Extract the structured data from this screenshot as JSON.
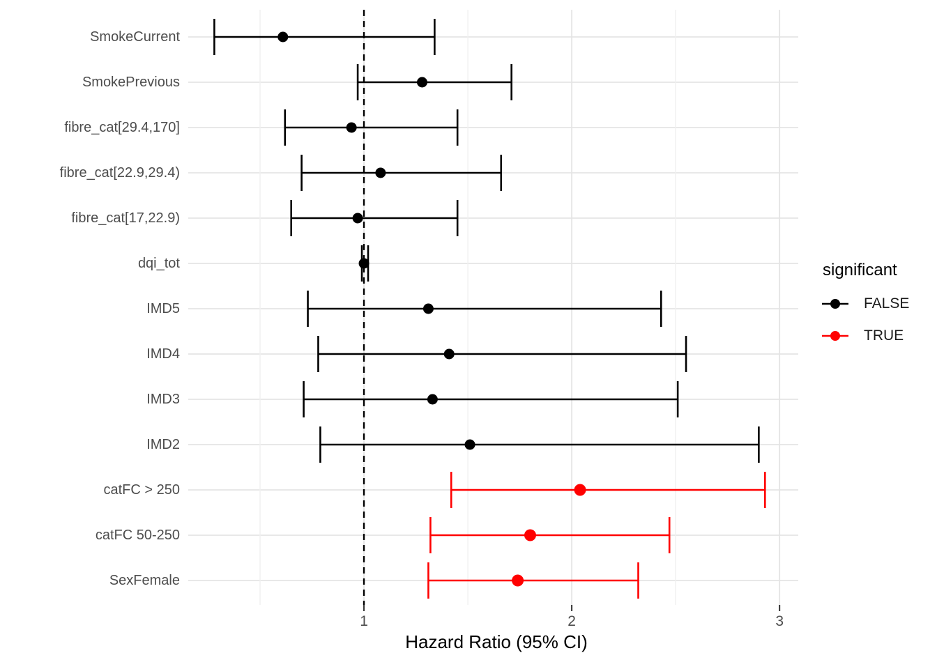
{
  "chart_data": {
    "type": "scatter",
    "subtype": "forest-plot",
    "title": "",
    "xlabel": "Hazard Ratio (95% CI)",
    "ylabel": "",
    "xlim": [
      0.188,
      3.09
    ],
    "x_ticks": [
      1,
      2,
      3
    ],
    "x_tick_labels": [
      "1",
      "2",
      "3"
    ],
    "x_minor_gridlines": [
      0.5,
      1.5,
      2.5
    ],
    "reference_line_x": 1,
    "grid": true,
    "legend_position": "right",
    "rows": [
      {
        "label": "SmokeCurrent",
        "hr": 0.61,
        "ci_low": 0.28,
        "ci_high": 1.34,
        "significant": false
      },
      {
        "label": "SmokePrevious",
        "hr": 1.28,
        "ci_low": 0.97,
        "ci_high": 1.71,
        "significant": false
      },
      {
        "label": "fibre_cat[29.4,170]",
        "hr": 0.94,
        "ci_low": 0.62,
        "ci_high": 1.45,
        "significant": false
      },
      {
        "label": "fibre_cat[22.9,29.4)",
        "hr": 1.08,
        "ci_low": 0.7,
        "ci_high": 1.66,
        "significant": false
      },
      {
        "label": "fibre_cat[17,22.9)",
        "hr": 0.97,
        "ci_low": 0.65,
        "ci_high": 1.45,
        "significant": false
      },
      {
        "label": "dqi_tot",
        "hr": 1.0,
        "ci_low": 0.99,
        "ci_high": 1.02,
        "significant": false
      },
      {
        "label": "IMD5",
        "hr": 1.31,
        "ci_low": 0.73,
        "ci_high": 2.43,
        "significant": false
      },
      {
        "label": "IMD4",
        "hr": 1.41,
        "ci_low": 0.78,
        "ci_high": 2.55,
        "significant": false
      },
      {
        "label": "IMD3",
        "hr": 1.33,
        "ci_low": 0.71,
        "ci_high": 2.51,
        "significant": false
      },
      {
        "label": "IMD2",
        "hr": 1.51,
        "ci_low": 0.79,
        "ci_high": 2.9,
        "significant": false
      },
      {
        "label": "catFC > 250",
        "hr": 2.04,
        "ci_low": 1.42,
        "ci_high": 2.93,
        "significant": true
      },
      {
        "label": "catFC 50-250",
        "hr": 1.8,
        "ci_low": 1.32,
        "ci_high": 2.47,
        "significant": true
      },
      {
        "label": "SexFemale",
        "hr": 1.74,
        "ci_low": 1.31,
        "ci_high": 2.32,
        "significant": true
      }
    ],
    "legend": {
      "title": "significant",
      "entries": [
        {
          "label": "FALSE",
          "color": "#000000"
        },
        {
          "label": "TRUE",
          "color": "#ff0000"
        }
      ]
    },
    "colors": {
      "not_significant": "#000000",
      "significant": "#ff0000",
      "grid_major": "#e4e4e4",
      "grid_minor": "#f0f0f0",
      "axis_text": "#4d4d4d",
      "reference_line": "#000000"
    }
  }
}
